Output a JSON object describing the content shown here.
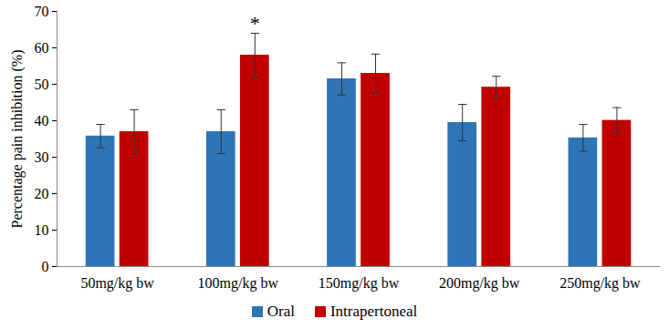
{
  "chart_data": {
    "type": "bar",
    "y_label": "Percentage pain inhibition (%)",
    "categories": [
      "50mg/kg bw",
      "100mg/kg bw",
      "150mg/kg bw",
      "200mg/kg bw",
      "250mg/kg bw"
    ],
    "series": [
      {
        "name": "Oral",
        "color": "#2E75B6",
        "values": [
          35.8,
          37.0,
          51.5,
          39.5,
          35.3
        ],
        "errors": [
          3.2,
          6.0,
          4.4,
          5.0,
          3.7
        ]
      },
      {
        "name": "Intrapertoneal",
        "color": "#C00000",
        "values": [
          37.0,
          58.0,
          53.0,
          49.2,
          40.1
        ],
        "errors": [
          6.0,
          6.0,
          5.3,
          3.0,
          3.5
        ]
      }
    ],
    "ylim": [
      0,
      70
    ],
    "yticks": [
      0,
      10,
      20,
      30,
      40,
      50,
      60,
      70
    ],
    "grid": false,
    "legend": "bottom",
    "annotations": [
      {
        "text": "*",
        "category": "100mg/kg bw",
        "series": "Intrapertoneal"
      }
    ]
  }
}
